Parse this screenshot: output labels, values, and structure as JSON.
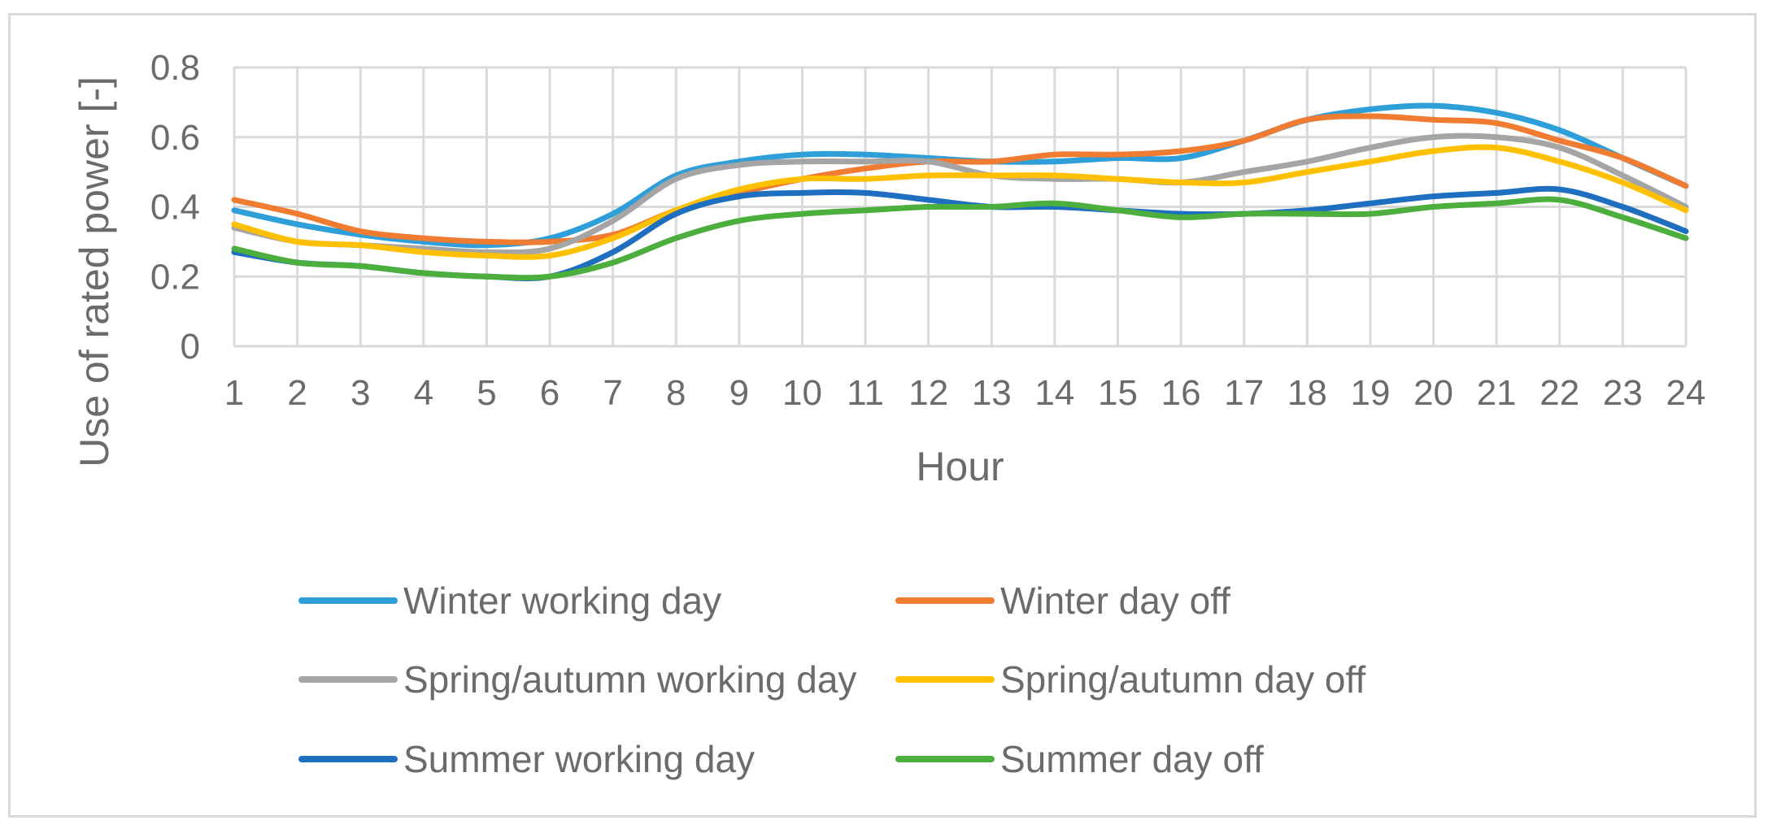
{
  "chart_data": {
    "type": "line",
    "xlabel": "Hour",
    "ylabel": "Use of rated power [-]",
    "x": [
      1,
      2,
      3,
      4,
      5,
      6,
      7,
      8,
      9,
      10,
      11,
      12,
      13,
      14,
      15,
      16,
      17,
      18,
      19,
      20,
      21,
      22,
      23,
      24
    ],
    "ylim": [
      0,
      0.8
    ],
    "yticks": [
      "0",
      "0.2",
      "0.4",
      "0.6",
      "0.8"
    ],
    "grid": true,
    "smooth": true,
    "legend_position": "bottom",
    "series": [
      {
        "name": "Winter working day",
        "color": "#2E9FD8",
        "values": [
          0.39,
          0.35,
          0.32,
          0.3,
          0.29,
          0.31,
          0.38,
          0.49,
          0.53,
          0.55,
          0.55,
          0.54,
          0.53,
          0.53,
          0.54,
          0.54,
          0.59,
          0.65,
          0.68,
          0.69,
          0.67,
          0.62,
          0.54,
          0.46
        ]
      },
      {
        "name": "Winter day off",
        "color": "#F07C32",
        "values": [
          0.42,
          0.38,
          0.33,
          0.31,
          0.3,
          0.3,
          0.32,
          0.39,
          0.44,
          0.48,
          0.51,
          0.53,
          0.53,
          0.55,
          0.55,
          0.56,
          0.59,
          0.65,
          0.66,
          0.65,
          0.64,
          0.59,
          0.54,
          0.46
        ]
      },
      {
        "name": "Spring/autumn working day",
        "color": "#A5A5A5",
        "values": [
          0.34,
          0.3,
          0.29,
          0.28,
          0.27,
          0.28,
          0.36,
          0.48,
          0.52,
          0.53,
          0.53,
          0.53,
          0.49,
          0.48,
          0.48,
          0.47,
          0.5,
          0.53,
          0.57,
          0.6,
          0.6,
          0.57,
          0.49,
          0.4
        ]
      },
      {
        "name": "Spring/autumn day off",
        "color": "#FFC000",
        "values": [
          0.35,
          0.3,
          0.29,
          0.27,
          0.26,
          0.26,
          0.31,
          0.39,
          0.45,
          0.48,
          0.48,
          0.49,
          0.49,
          0.49,
          0.48,
          0.47,
          0.47,
          0.5,
          0.53,
          0.56,
          0.57,
          0.53,
          0.47,
          0.39
        ]
      },
      {
        "name": "Summer working day",
        "color": "#1F6FC1",
        "values": [
          0.27,
          0.24,
          0.23,
          0.21,
          0.2,
          0.2,
          0.27,
          0.38,
          0.43,
          0.44,
          0.44,
          0.42,
          0.4,
          0.4,
          0.39,
          0.38,
          0.38,
          0.39,
          0.41,
          0.43,
          0.44,
          0.45,
          0.4,
          0.33
        ]
      },
      {
        "name": "Summer day off",
        "color": "#4CAF3D",
        "values": [
          0.28,
          0.24,
          0.23,
          0.21,
          0.2,
          0.2,
          0.24,
          0.31,
          0.36,
          0.38,
          0.39,
          0.4,
          0.4,
          0.41,
          0.39,
          0.37,
          0.38,
          0.38,
          0.38,
          0.4,
          0.41,
          0.42,
          0.37,
          0.31
        ]
      }
    ]
  }
}
